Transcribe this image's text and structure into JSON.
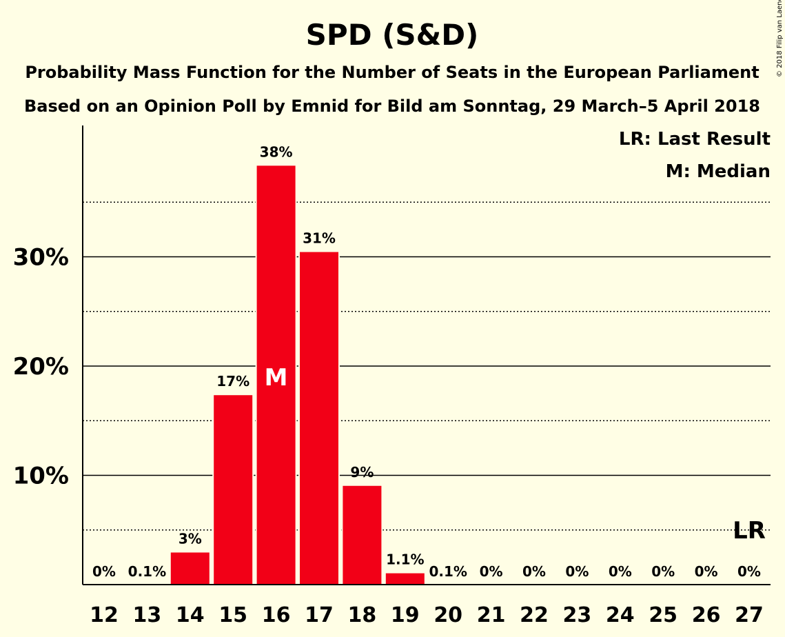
{
  "chart_data": {
    "type": "bar",
    "title": "SPD (S&D)",
    "subtitle_lines": [
      "Probability Mass Function for the Number of Seats in the European Parliament",
      "Based on an Opinion Poll by Emnid for Bild am Sonntag, 29 March–5 April 2018"
    ],
    "categories": [
      "12",
      "13",
      "14",
      "15",
      "16",
      "17",
      "18",
      "19",
      "20",
      "21",
      "22",
      "23",
      "24",
      "25",
      "26",
      "27"
    ],
    "values": [
      0,
      0.1,
      3.0,
      17.4,
      38.4,
      30.5,
      9.1,
      1.1,
      0.1,
      0,
      0,
      0,
      0,
      0,
      0,
      0
    ],
    "data_labels": [
      "0%",
      "0.1%",
      "3%",
      "17%",
      "38%",
      "31%",
      "9%",
      "1.1%",
      "0.1%",
      "0%",
      "0%",
      "0%",
      "0%",
      "0%",
      "0%",
      "0%"
    ],
    "ylim": [
      0,
      42
    ],
    "yticks": [
      10,
      20,
      30
    ],
    "ytick_labels": [
      "10%",
      "20%",
      "30%"
    ],
    "minor_gridlines": [
      5,
      15,
      25,
      35
    ],
    "median_category": "16",
    "median_label": "M",
    "last_result_category": "27",
    "last_result_label": "LR",
    "legend": [
      "LR: Last Result",
      "M: Median"
    ],
    "legend_position": "top-right",
    "bar_color": "#F20017",
    "background_color": "#FFFEE5",
    "copyright": "© 2018 Filip van Laenen"
  }
}
